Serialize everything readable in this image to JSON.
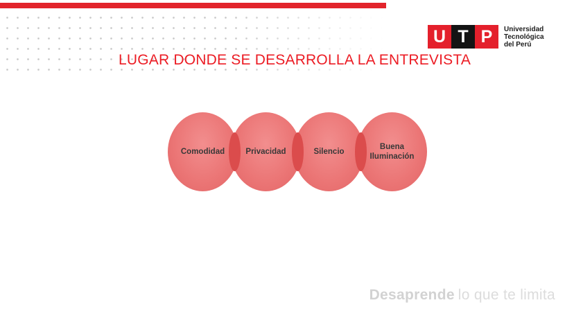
{
  "slide": {
    "title": "LUGAR DONDE SE DESARROLLA LA ENTREVISTA",
    "title_color": "#EC1C24",
    "accent_bar_color": "#E2242B",
    "background_color": "#FFFFFF",
    "dot_pattern_color": "#C8C8C8"
  },
  "logo": {
    "blocks": [
      {
        "letter": "U",
        "bg": "#E4202C"
      },
      {
        "letter": "T",
        "bg": "#141414"
      },
      {
        "letter": "P",
        "bg": "#E4202C"
      }
    ],
    "wordmark_lines": {
      "line1": "Universidad",
      "line2": "Tecnológica",
      "line3": "del Perú"
    }
  },
  "venn": {
    "fill": "#EB7575",
    "overlap_fill": "#DB4C4C",
    "label_color": "#383838",
    "items": [
      {
        "label": "Comodidad"
      },
      {
        "label": "Privacidad"
      },
      {
        "label": "Silencio"
      },
      {
        "label": "Buena Iluminación"
      }
    ]
  },
  "footer": {
    "brand_bold": "Desaprende",
    "brand_rest": "lo que te limita",
    "color": "#DCDCDC"
  }
}
